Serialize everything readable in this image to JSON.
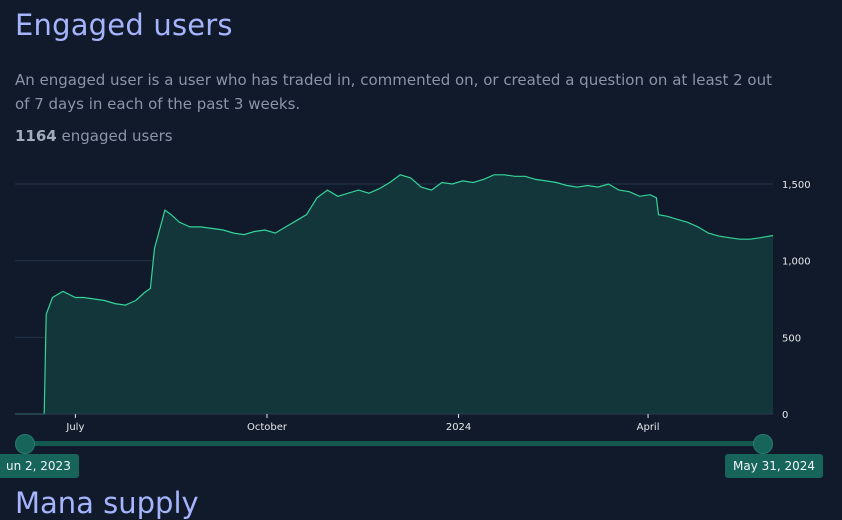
{
  "section": {
    "title": "Engaged users",
    "description": "An engaged user is a user who has traded in, commented on, or created a question on at least 2 out of 7 days in each of the past 3 weeks.",
    "count": "1164",
    "count_suffix": "engaged users"
  },
  "range": {
    "start_label": "un 2, 2023",
    "end_label": "May 31, 2024"
  },
  "next_section": {
    "title": "Mana supply"
  },
  "colors": {
    "line": "#34d399",
    "fill": "#12363a",
    "grid": "#25344a"
  },
  "chart_data": {
    "type": "area",
    "title": "",
    "xlabel": "",
    "ylabel": "",
    "x_range": [
      "2023-06-02",
      "2024-05-31"
    ],
    "ylim": [
      0,
      1500
    ],
    "y_ticks": [
      0,
      500,
      1000,
      1500
    ],
    "y_tick_labels": [
      "0",
      "500",
      "1,000",
      "1,500"
    ],
    "x_ticks": [
      {
        "date": "2023-07-01",
        "label": "July"
      },
      {
        "date": "2023-10-01",
        "label": "October"
      },
      {
        "date": "2024-01-01",
        "label": "2024"
      },
      {
        "date": "2024-04-01",
        "label": "April"
      }
    ],
    "grid": true,
    "series": [
      {
        "x": [
          "2023-06-02",
          "2023-06-10",
          "2023-06-16",
          "2023-06-17",
          "2023-06-20",
          "2023-06-25",
          "2023-07-01",
          "2023-07-05",
          "2023-07-10",
          "2023-07-15",
          "2023-07-20",
          "2023-07-25",
          "2023-07-30",
          "2023-08-03",
          "2023-08-06",
          "2023-08-08",
          "2023-08-11",
          "2023-08-13",
          "2023-08-16",
          "2023-08-20",
          "2023-08-25",
          "2023-08-30",
          "2023-09-05",
          "2023-09-10",
          "2023-09-15",
          "2023-09-20",
          "2023-09-25",
          "2023-09-30",
          "2023-10-05",
          "2023-10-10",
          "2023-10-15",
          "2023-10-20",
          "2023-10-25",
          "2023-10-30",
          "2023-11-04",
          "2023-11-09",
          "2023-11-14",
          "2023-11-19",
          "2023-11-24",
          "2023-11-29",
          "2023-12-04",
          "2023-12-09",
          "2023-12-14",
          "2023-12-19",
          "2023-12-24",
          "2023-12-29",
          "2024-01-03",
          "2024-01-08",
          "2024-01-13",
          "2024-01-18",
          "2024-01-23",
          "2024-01-28",
          "2024-02-02",
          "2024-02-07",
          "2024-02-12",
          "2024-02-17",
          "2024-02-22",
          "2024-02-27",
          "2024-03-03",
          "2024-03-08",
          "2024-03-13",
          "2024-03-18",
          "2024-03-23",
          "2024-03-28",
          "2024-04-02",
          "2024-04-05",
          "2024-04-06",
          "2024-04-10",
          "2024-04-15",
          "2024-04-20",
          "2024-04-25",
          "2024-04-30",
          "2024-05-05",
          "2024-05-10",
          "2024-05-15",
          "2024-05-20",
          "2024-05-25",
          "2024-05-31"
        ],
        "values": [
          0,
          0,
          0,
          650,
          760,
          800,
          760,
          760,
          750,
          740,
          720,
          710,
          740,
          790,
          820,
          1080,
          1230,
          1330,
          1300,
          1250,
          1220,
          1220,
          1210,
          1200,
          1180,
          1170,
          1190,
          1200,
          1180,
          1220,
          1260,
          1300,
          1410,
          1460,
          1420,
          1440,
          1460,
          1440,
          1470,
          1510,
          1560,
          1540,
          1480,
          1460,
          1510,
          1500,
          1520,
          1510,
          1530,
          1560,
          1560,
          1550,
          1550,
          1530,
          1520,
          1510,
          1490,
          1480,
          1490,
          1480,
          1500,
          1460,
          1450,
          1420,
          1430,
          1410,
          1300,
          1290,
          1270,
          1250,
          1220,
          1180,
          1160,
          1150,
          1140,
          1140,
          1150,
          1164
        ]
      }
    ]
  }
}
